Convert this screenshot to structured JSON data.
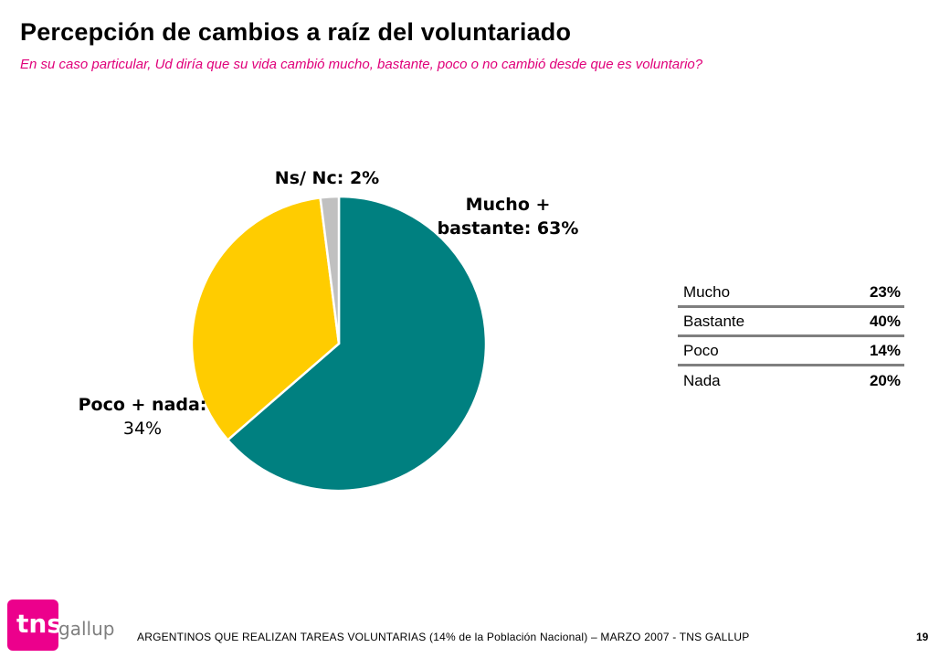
{
  "header": {
    "title": "Percepción de cambios a raíz del voluntariado",
    "subtitle": "En su caso particular, Ud diría que su vida cambió mucho, bastante, poco o no cambió desde que es voluntario?"
  },
  "chart_data": {
    "type": "pie",
    "slices": [
      {
        "label_line1": "Mucho +",
        "label_line2": "bastante: 63%",
        "value": 63,
        "color": "#008080"
      },
      {
        "label_line1": "Poco + nada:",
        "label_line2": "34%",
        "value": 34,
        "color": "#ffcc00"
      },
      {
        "label_line1": "Ns/ Nc: 2%",
        "label_line2": "",
        "value": 2,
        "color": "#c0c0c0"
      }
    ],
    "breakdown_table": [
      {
        "label": "Mucho",
        "value": "23%"
      },
      {
        "label": "Bastante",
        "value": "40%"
      },
      {
        "label": "Poco",
        "value": "14%"
      },
      {
        "label": "Nada",
        "value": "20%"
      }
    ]
  },
  "footer": {
    "text": "ARGENTINOS QUE REALIZAN TAREAS VOLUNTARIAS (14% de la Población Nacional) – MARZO 2007 - TNS GALLUP",
    "page_number": "19"
  },
  "logo": {
    "brand": "tns",
    "sub": "gallup",
    "color": "#ec008c"
  }
}
